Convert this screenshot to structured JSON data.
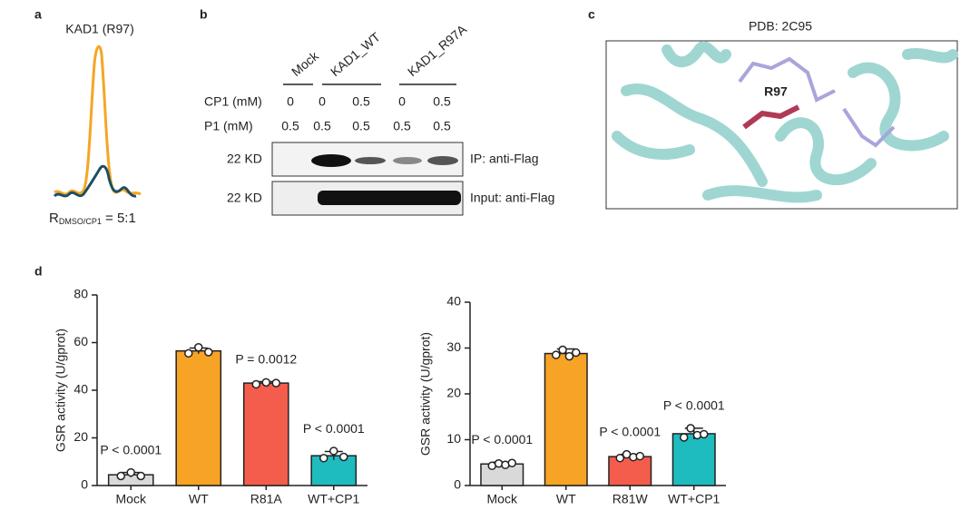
{
  "panels": {
    "a": {
      "letter": "a",
      "title": "KAD1 (R97)",
      "ratio_main": "R",
      "ratio_sub": "DMSO/CP1",
      "ratio_value": " = 5:1"
    },
    "b": {
      "letter": "b",
      "groups": [
        "Mock",
        "KAD1_WT",
        "KAD1_R97A"
      ],
      "rows": [
        {
          "label": "CP1 (mM)",
          "cells": [
            "0",
            "0",
            "0.5",
            "0",
            "0.5"
          ]
        },
        {
          "label": "P1 (mM)",
          "cells": [
            "0.5",
            "0.5",
            "0.5",
            "0.5",
            "0.5"
          ]
        }
      ],
      "blots": [
        {
          "size": "22 KD",
          "label": "IP: anti-Flag"
        },
        {
          "size": "22 KD",
          "label": "Input: anti-Flag"
        }
      ]
    },
    "c": {
      "letter": "c",
      "title": "PDB: 2C95",
      "residue": "R97"
    },
    "d": {
      "letter": "d"
    }
  },
  "chart_data": [
    {
      "type": "bar",
      "y_label": "GSR activity (U/gprot)",
      "ylim": [
        0,
        80
      ],
      "yticks": [
        0,
        20,
        40,
        60,
        80
      ],
      "categories": [
        "Mock",
        "WT",
        "R81A",
        "WT+CP1"
      ],
      "colors": [
        "#d9d9d9",
        "#f7a325",
        "#f45d4c",
        "#1fbcbf"
      ],
      "values": [
        4.5,
        56.5,
        43,
        12.5
      ],
      "errors": [
        1,
        1.2,
        0.6,
        1.8
      ],
      "points": [
        [
          4,
          5.5,
          4
        ],
        [
          55.5,
          58,
          56
        ],
        [
          42.5,
          43.3,
          43
        ],
        [
          11.5,
          14.5,
          12
        ]
      ],
      "annotations": [
        "P < 0.0001",
        null,
        "P = 0.0012",
        "P < 0.0001"
      ]
    },
    {
      "type": "bar",
      "y_label": "GSR activity (U/gprot)",
      "ylim": [
        0,
        40
      ],
      "yticks": [
        0,
        10,
        20,
        30,
        40
      ],
      "categories": [
        "Mock",
        "WT",
        "R81W",
        "WT+CP1"
      ],
      "colors": [
        "#d9d9d9",
        "#f7a325",
        "#f45d4c",
        "#1fbcbf"
      ],
      "values": [
        4.7,
        28.8,
        6.3,
        11.3
      ],
      "errors": [
        0.4,
        1,
        0.5,
        1.2
      ],
      "points": [
        [
          4.3,
          4.8,
          4.5,
          4.9
        ],
        [
          28.5,
          29.6,
          28.2,
          29
        ],
        [
          6,
          6.8,
          6.2,
          6.4
        ],
        [
          10.5,
          12.5,
          11,
          11.2
        ]
      ],
      "annotations": [
        "P < 0.0001",
        null,
        "P < 0.0001",
        "P < 0.0001"
      ]
    }
  ]
}
